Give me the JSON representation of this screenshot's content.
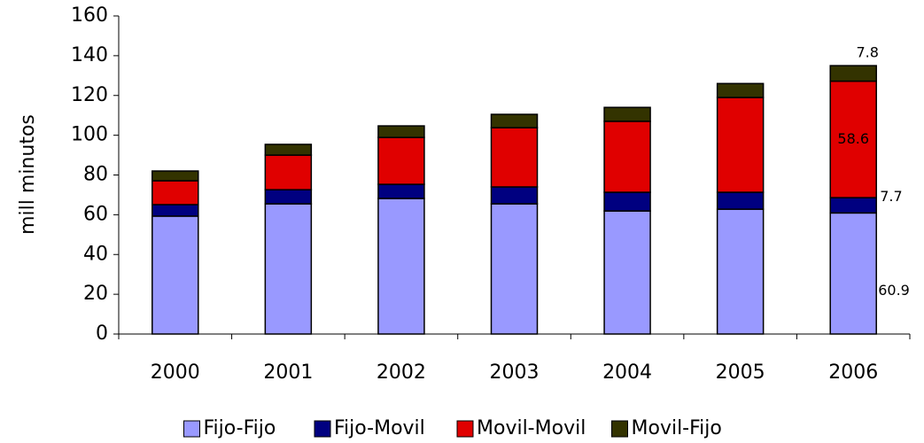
{
  "chart_data": {
    "type": "stacked_bar",
    "y_label": "mill minutos",
    "categories": [
      "2000",
      "2001",
      "2002",
      "2003",
      "2004",
      "2005",
      "2006"
    ],
    "series": [
      {
        "name": "Fijo-Fijo",
        "color": "#9999ff",
        "values": [
          59.3,
          65.5,
          68.2,
          65.5,
          61.9,
          62.8,
          60.9
        ]
      },
      {
        "name": "Fijo-Movil",
        "color": "#000080",
        "values": [
          5.8,
          7.1,
          7.1,
          8.5,
          9.4,
          8.5,
          7.7
        ]
      },
      {
        "name": "Movil-Movil",
        "color": "#e00000",
        "values": [
          12,
          17.4,
          23.6,
          29.8,
          35.7,
          47.7,
          58.6
        ]
      },
      {
        "name": "Movil-Fijo",
        "color": "#333300",
        "values": [
          4.9,
          5.4,
          5.8,
          6.7,
          7,
          7,
          7.8
        ]
      }
    ],
    "ylim": [
      0,
      160
    ],
    "yticks": [
      0,
      20,
      40,
      60,
      80,
      100,
      120,
      140,
      160
    ],
    "grid": false,
    "legend": "bottom"
  }
}
